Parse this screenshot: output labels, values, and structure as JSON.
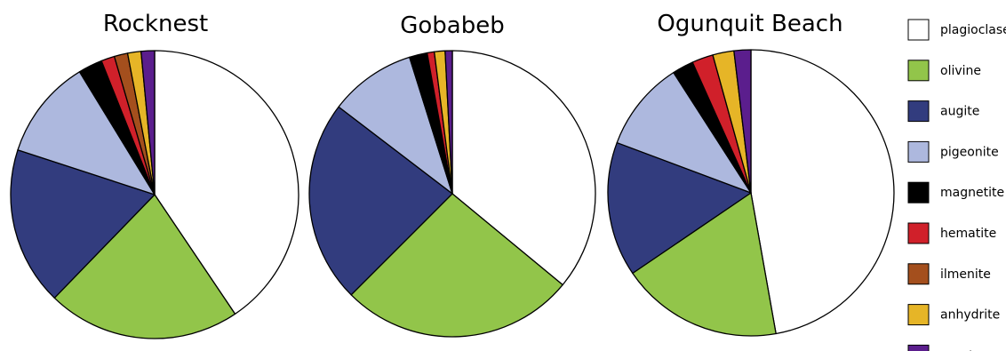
{
  "chart_data": {
    "type": "pie",
    "legend_position": "right",
    "legend": [
      {
        "name": "plagioclase",
        "color": "#ffffff"
      },
      {
        "name": "olivine",
        "color": "#92c54a"
      },
      {
        "name": "augite",
        "color": "#323c7e"
      },
      {
        "name": "pigeonite",
        "color": "#adb8de"
      },
      {
        "name": "magnetite",
        "color": "#000000"
      },
      {
        "name": "hematite",
        "color": "#d0202a"
      },
      {
        "name": "ilmenite",
        "color": "#a44f1d"
      },
      {
        "name": "anhydrite",
        "color": "#e6b527"
      },
      {
        "name": "quartz",
        "color": "#5b1e8d"
      }
    ],
    "pies": [
      {
        "title": "Rocknest",
        "slices": [
          {
            "name": "plagioclase",
            "value": 40.4
          },
          {
            "name": "olivine",
            "value": 21.6
          },
          {
            "name": "augite",
            "value": 17.7
          },
          {
            "name": "pigeonite",
            "value": 11.2
          },
          {
            "name": "magnetite",
            "value": 2.7
          },
          {
            "name": "hematite",
            "value": 1.5
          },
          {
            "name": "ilmenite",
            "value": 1.5
          },
          {
            "name": "anhydrite",
            "value": 1.5
          },
          {
            "name": "quartz",
            "value": 1.5
          }
        ]
      },
      {
        "title": "Gobabeb",
        "slices": [
          {
            "name": "plagioclase",
            "value": 35.7
          },
          {
            "name": "olivine",
            "value": 26.3
          },
          {
            "name": "augite",
            "value": 22.7
          },
          {
            "name": "pigeonite",
            "value": 9.7
          },
          {
            "name": "magnetite",
            "value": 2.0
          },
          {
            "name": "hematite",
            "value": 0.8
          },
          {
            "name": "ilmenite",
            "value": 0.0
          },
          {
            "name": "anhydrite",
            "value": 1.2
          },
          {
            "name": "quartz",
            "value": 0.8
          }
        ]
      },
      {
        "title": "Ogunquit Beach",
        "slices": [
          {
            "name": "plagioclase",
            "value": 47.2
          },
          {
            "name": "olivine",
            "value": 18.3
          },
          {
            "name": "augite",
            "value": 15.2
          },
          {
            "name": "pigeonite",
            "value": 10.2
          },
          {
            "name": "magnetite",
            "value": 2.4
          },
          {
            "name": "hematite",
            "value": 2.4
          },
          {
            "name": "ilmenite",
            "value": 0.0
          },
          {
            "name": "anhydrite",
            "value": 2.4
          },
          {
            "name": "quartz",
            "value": 1.9
          }
        ]
      }
    ]
  }
}
